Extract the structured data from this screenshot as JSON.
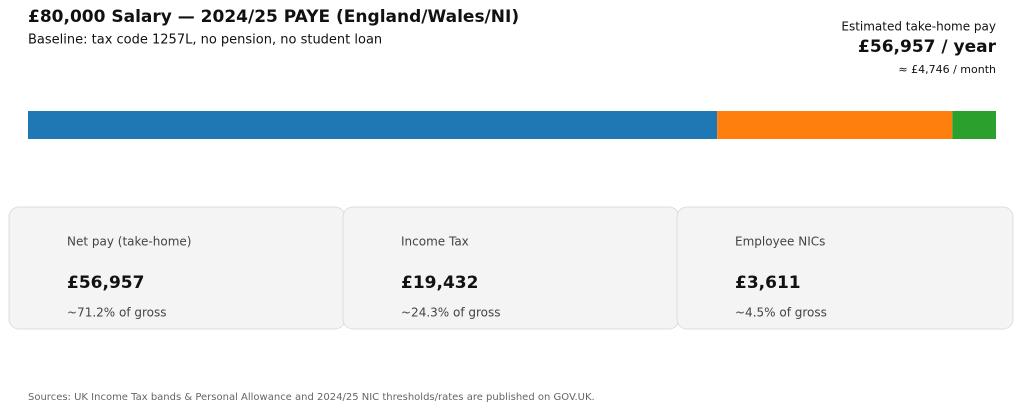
{
  "chart_data": {
    "type": "stacked-bar",
    "title": "£80,000 Salary — 2024/25 PAYE (England/Wales/NI)",
    "subtitle": "Baseline: tax code 1257L, no pension, no student loan",
    "headline": {
      "label": "Estimated take-home pay",
      "annual": "£56,957 / year",
      "monthly": "≈ £4,746 / month"
    },
    "series": [
      {
        "name": "Net pay (take-home)",
        "color": "#1f77b4",
        "values": [
          56957
        ],
        "value_labels": [
          "£56,957"
        ],
        "share_label": "~71.2% of gross"
      },
      {
        "name": "Income Tax",
        "color": "#ff7f0e",
        "values": [
          19432
        ],
        "value_labels": [
          "£19,432"
        ],
        "share_label": "~24.3% of gross"
      },
      {
        "name": "Employee NICs",
        "color": "#2ca02c",
        "values": [
          3611
        ],
        "value_labels": [
          "£3,611"
        ],
        "share_label": "~4.5% of gross"
      }
    ],
    "xlim": [
      0,
      80000
    ],
    "note": "Sources: UK Income Tax bands & Personal Allowance and 2024/25 NIC thresholds/rates are published on GOV.UK."
  }
}
